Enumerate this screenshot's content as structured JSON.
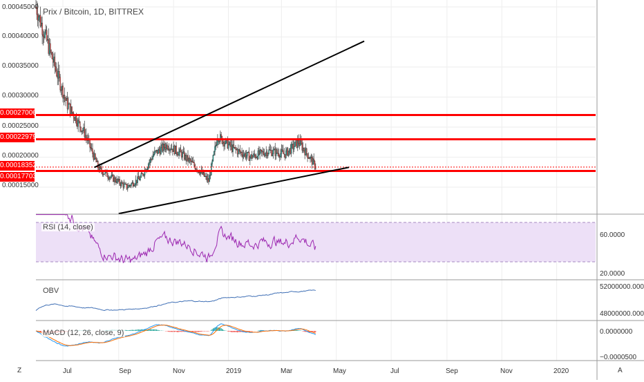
{
  "header": {
    "title": "Prix / Bitcoin, 1D, BITTREX"
  },
  "axis": {
    "price_ticks": [
      "0.00045000",
      "0.00040000",
      "0.00035000",
      "0.00030000",
      "0.00025000",
      "0.00020000",
      "0.00015000"
    ],
    "x_labels": [
      "Jul",
      "Sep",
      "Nov",
      "2019",
      "Mar",
      "May",
      "Jul",
      "Sep",
      "Nov",
      "2020"
    ],
    "rsi_ticks": [
      "60.0000",
      "20.0000"
    ],
    "obv_ticks": [
      "52000000.0000",
      "48000000.0000"
    ],
    "macd_ticks": [
      "0.0000000",
      "−0.0000500"
    ]
  },
  "price_tags": [
    {
      "label": "0.00027006",
      "value": 0.00027006
    },
    {
      "label": "0.00022979",
      "value": 0.00022979
    },
    {
      "label": "0.00018352",
      "value": 0.00018352
    },
    {
      "label": "0.00017703",
      "value": 0.00017703
    }
  ],
  "indicators": {
    "rsi_label": "RSI (14, close)",
    "obv_label": "OBV",
    "macd_label": "MACD (12, 26, close, 9)"
  },
  "bottom": {
    "left_button": "Z",
    "right_button": "A"
  },
  "colors": {
    "level_line": "#ff0000",
    "rsi_line": "#9c27b0",
    "rsi_band": "#ede0f7",
    "obv_line": "#3f6fb5",
    "macd_line": "#2196f3",
    "signal_line": "#ff6d00",
    "up": "#26a69a",
    "down": "#ef5350"
  },
  "chart_data": {
    "type": "candlestick",
    "title": "Prix / Bitcoin, 1D, BITTREX",
    "ylim": [
      0.0001,
      0.00046
    ],
    "date_range": [
      "2018-06",
      "2020-02"
    ],
    "close_path": [
      {
        "x": "2018-06-01",
        "y": 0.00045
      },
      {
        "x": "2018-06-20",
        "y": 0.00036
      },
      {
        "x": "2018-07-05",
        "y": 0.00029
      },
      {
        "x": "2018-07-25",
        "y": 0.00024
      },
      {
        "x": "2018-08-10",
        "y": 0.00018
      },
      {
        "x": "2018-08-25",
        "y": 0.000165
      },
      {
        "x": "2018-09-10",
        "y": 0.00015
      },
      {
        "x": "2018-09-25",
        "y": 0.000165
      },
      {
        "x": "2018-10-10",
        "y": 0.000205
      },
      {
        "x": "2018-10-25",
        "y": 0.00022
      },
      {
        "x": "2018-11-10",
        "y": 0.000205
      },
      {
        "x": "2018-11-25",
        "y": 0.000185
      },
      {
        "x": "2018-12-10",
        "y": 0.00016
      },
      {
        "x": "2018-12-20",
        "y": 0.000235
      },
      {
        "x": "2019-01-05",
        "y": 0.000215
      },
      {
        "x": "2019-01-25",
        "y": 0.0002
      },
      {
        "x": "2019-02-15",
        "y": 0.00021
      },
      {
        "x": "2019-03-05",
        "y": 0.000205
      },
      {
        "x": "2019-03-20",
        "y": 0.000225
      },
      {
        "x": "2019-04-01",
        "y": 0.0002
      },
      {
        "x": "2019-04-08",
        "y": 0.000184
      }
    ],
    "trendlines": [
      {
        "name": "upper",
        "from": {
          "x": "2018-08-05",
          "y": 0.000183
        },
        "to": {
          "x": "2019-06-01",
          "y": 0.000393
        }
      },
      {
        "name": "lower",
        "from": {
          "x": "2018-09-01",
          "y": 0.000106
        },
        "to": {
          "x": "2019-05-15",
          "y": 0.000183
        }
      }
    ],
    "levels": [
      0.00027006,
      0.00022979,
      0.00017703
    ],
    "current_price": 0.00018352,
    "rsi": {
      "band": [
        30,
        70
      ],
      "ticks": [
        60,
        20
      ]
    },
    "obv": {
      "ticks": [
        52000000,
        48000000
      ]
    },
    "macd": {
      "ticks": [
        0.0,
        -5e-05
      ]
    }
  }
}
